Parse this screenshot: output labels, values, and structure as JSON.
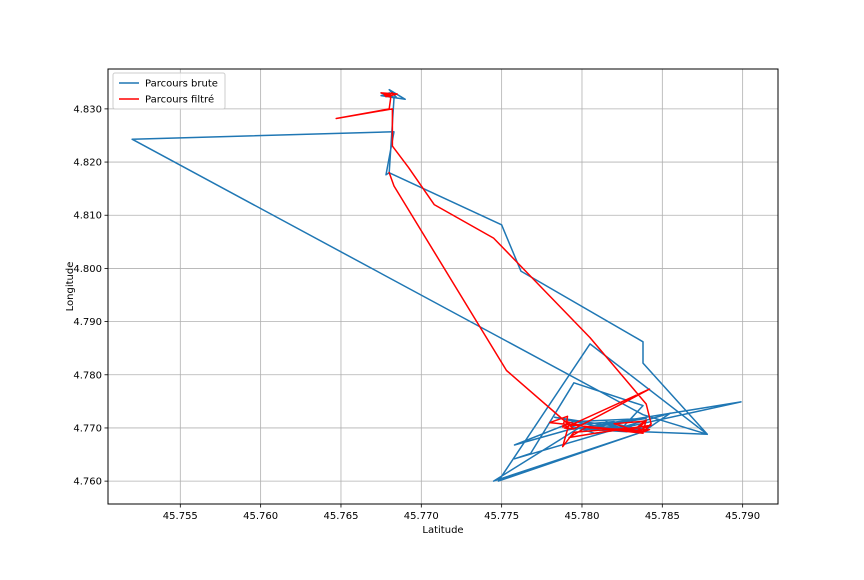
{
  "chart_data": {
    "type": "line",
    "title": "",
    "xlabel": "Latitude",
    "ylabel": "Longitude",
    "xlim": [
      45.7505,
      45.7922
    ],
    "ylim": [
      4.7557,
      4.8375
    ],
    "xticks": [
      45.755,
      45.76,
      45.765,
      45.77,
      45.775,
      45.78,
      45.785,
      45.79
    ],
    "xtick_labels": [
      "45.755",
      "45.760",
      "45.765",
      "45.770",
      "45.775",
      "45.780",
      "45.785",
      "45.790"
    ],
    "yticks": [
      4.76,
      4.77,
      4.78,
      4.79,
      4.8,
      4.81,
      4.82,
      4.83
    ],
    "ytick_labels": [
      "4.760",
      "4.770",
      "4.780",
      "4.790",
      "4.800",
      "4.810",
      "4.820",
      "4.830"
    ],
    "grid": true,
    "legend_position": "top-left",
    "series": [
      {
        "name": "Parcours brute",
        "color": "#1f77b4",
        "x": [
          45.768,
          45.7675,
          45.769,
          45.768,
          45.7685,
          45.7675,
          45.768,
          45.7683,
          45.768,
          45.7678,
          45.7683,
          45.752,
          45.7838,
          45.7878,
          45.7805,
          45.7748,
          45.7838,
          45.7855,
          45.7758,
          45.7768,
          45.7795,
          45.7838,
          45.7825,
          45.7899,
          45.7792,
          45.7758,
          45.7795,
          45.784,
          45.781,
          45.7783,
          45.7805,
          45.7822,
          45.7815,
          45.7832,
          45.7808,
          45.7792,
          45.782,
          45.781,
          45.7838,
          45.7828,
          45.78,
          45.782,
          45.7838,
          45.7798,
          45.7745,
          45.7838,
          45.7878,
          45.7838,
          45.7838,
          45.7762,
          45.775,
          45.768
        ],
        "y": [
          4.833,
          4.8325,
          4.8318,
          4.8336,
          4.832,
          4.833,
          4.8325,
          4.832,
          4.818,
          4.8176,
          4.8257,
          4.8243,
          4.7725,
          4.7688,
          4.7858,
          4.76,
          4.7693,
          4.7728,
          4.7642,
          4.7652,
          4.7785,
          4.7742,
          4.77,
          4.7749,
          4.7697,
          4.7668,
          4.7712,
          4.7718,
          4.7703,
          4.772,
          4.771,
          4.7703,
          4.7712,
          4.77,
          4.769,
          4.7705,
          4.7712,
          4.77,
          4.77,
          4.7693,
          4.7698,
          4.7703,
          4.7697,
          4.77,
          4.76,
          4.7693,
          4.7688,
          4.7822,
          4.7862,
          4.7995,
          4.8082,
          4.818
        ]
      },
      {
        "name": "Parcours filtré",
        "color": "#ff0000",
        "x": [
          45.768,
          45.7675,
          45.7685,
          45.7678,
          45.7682,
          45.7677,
          45.7681,
          45.768,
          45.7647,
          45.7682,
          45.7682,
          45.7692,
          45.7708,
          45.7745,
          45.7805,
          45.784,
          45.7843,
          45.7838,
          45.784,
          45.7835,
          45.7838,
          45.7803,
          45.7792,
          45.7812,
          45.7843,
          45.7838,
          45.7838,
          45.7828,
          45.782,
          45.784,
          45.7835,
          45.7815,
          45.7795,
          45.7788,
          45.7792,
          45.7788,
          45.7789,
          45.7805,
          45.783,
          45.7838,
          45.7842,
          45.7835,
          45.7838,
          45.778,
          45.7791,
          45.779,
          45.7795,
          45.7842,
          45.7789,
          45.7795,
          45.7753,
          45.7683,
          45.768
        ],
        "y": [
          4.8325,
          4.833,
          4.8328,
          4.8323,
          4.833,
          4.8326,
          4.8322,
          4.83,
          4.8282,
          4.83,
          4.823,
          4.819,
          4.812,
          4.8057,
          4.787,
          4.7745,
          4.7708,
          4.7692,
          4.7715,
          4.7703,
          4.769,
          4.7702,
          4.7682,
          4.7692,
          4.7705,
          4.77,
          4.7692,
          4.77,
          4.7708,
          4.7713,
          4.77,
          4.7697,
          4.7692,
          4.7665,
          4.7708,
          4.7702,
          4.7713,
          4.77,
          4.7697,
          4.7692,
          4.7697,
          4.7697,
          4.7692,
          4.771,
          4.7722,
          4.77,
          4.7698,
          4.7773,
          4.77,
          4.7698,
          4.7808,
          4.8155,
          4.818
        ]
      }
    ]
  }
}
